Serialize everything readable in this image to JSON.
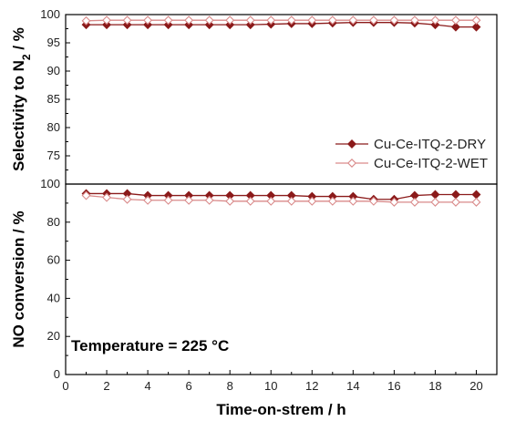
{
  "chart_data": {
    "type": "line",
    "x_axis": {
      "label": "Time-on-strem / h",
      "range": [
        0,
        21
      ],
      "ticks": [
        0,
        2,
        4,
        6,
        8,
        10,
        12,
        14,
        16,
        18,
        20
      ]
    },
    "panels": [
      {
        "position": "top",
        "ylabel": "Selectivity to N2 / %",
        "ylim": [
          70,
          100
        ],
        "yticks": [
          75,
          80,
          85,
          90,
          95,
          100
        ],
        "series": [
          {
            "name": "Cu-Ce-ITQ-2-DRY",
            "x": [
              1,
              2,
              3,
              4,
              5,
              6,
              7,
              8,
              9,
              10,
              11,
              12,
              13,
              14,
              15,
              16,
              17,
              18,
              19,
              20
            ],
            "y": [
              98.2,
              98.2,
              98.2,
              98.2,
              98.2,
              98.2,
              98.2,
              98.2,
              98.2,
              98.3,
              98.4,
              98.4,
              98.5,
              98.6,
              98.6,
              98.6,
              98.5,
              98.2,
              97.8,
              97.8
            ]
          },
          {
            "name": "Cu-Ce-ITQ-2-WET",
            "x": [
              1,
              2,
              3,
              4,
              5,
              6,
              7,
              8,
              9,
              10,
              11,
              12,
              13,
              14,
              15,
              16,
              17,
              18,
              19,
              20
            ],
            "y": [
              98.9,
              99.0,
              99.0,
              99.0,
              99.0,
              99.0,
              99.0,
              99.0,
              99.0,
              99.0,
              99.0,
              99.0,
              99.0,
              99.0,
              99.0,
              99.0,
              99.0,
              99.0,
              99.0,
              99.0
            ]
          }
        ]
      },
      {
        "position": "bottom",
        "ylabel": "NO conversion / %",
        "ylim": [
          0,
          100
        ],
        "yticks": [
          0,
          20,
          40,
          60,
          80,
          100
        ],
        "series": [
          {
            "name": "Cu-Ce-ITQ-2-DRY",
            "x": [
              1,
              2,
              3,
              4,
              5,
              6,
              7,
              8,
              9,
              10,
              11,
              12,
              13,
              14,
              15,
              16,
              17,
              18,
              19,
              20
            ],
            "y": [
              95,
              95,
              95,
              94,
              94,
              94,
              94,
              94,
              94,
              94,
              94,
              93.5,
              93.5,
              93.5,
              92,
              92,
              94,
              94.5,
              94.5,
              94.5
            ]
          },
          {
            "name": "Cu-Ce-ITQ-2-WET",
            "x": [
              1,
              2,
              3,
              4,
              5,
              6,
              7,
              8,
              9,
              10,
              11,
              12,
              13,
              14,
              15,
              16,
              17,
              18,
              19,
              20
            ],
            "y": [
              94,
              93,
              92,
              91.5,
              91.5,
              91.5,
              91.5,
              91,
              91,
              91,
              91,
              91,
              91,
              91,
              91,
              90.5,
              90.5,
              90.5,
              90.5,
              90.5
            ]
          }
        ]
      }
    ],
    "legend": {
      "placement": "lower-right of top panel",
      "entries": [
        {
          "name": "Cu-Ce-ITQ-2-DRY",
          "marker": "filled-diamond"
        },
        {
          "name": "Cu-Ce-ITQ-2-WET",
          "marker": "open-diamond"
        }
      ]
    },
    "annotation": "Temperature = 225 °C",
    "colors": {
      "dry": "#8b1a1a",
      "wet": "#d98a8a",
      "axis": "#000000"
    }
  }
}
